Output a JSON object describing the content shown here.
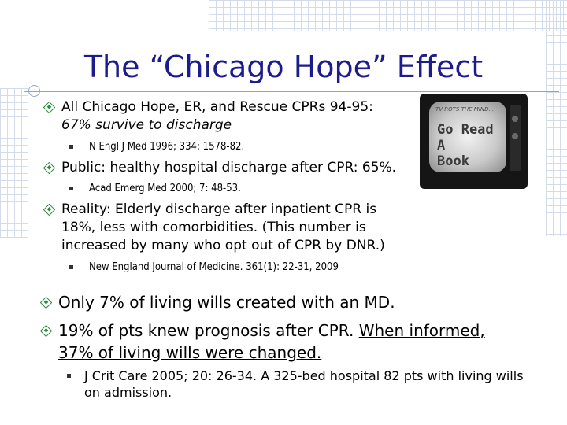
{
  "slide": {
    "title": "The “Chicago Hope” Effect",
    "bullets": [
      {
        "line1": "All Chicago Hope, ER, and Rescue CPRs 94-95:",
        "line2": "67% survive to discharge"
      },
      {
        "sub": "N Engl J Med 1996; 334: 1578-82."
      },
      {
        "text": "Public: healthy hospital discharge after CPR: 65%."
      },
      {
        "sub": "Acad Emerg Med 2000; 7: 48-53."
      },
      {
        "line1": "Reality: Elderly discharge after inpatient CPR is",
        "line2": "18%, less with comorbidities. (This number is",
        "line3": "increased by many who opt out of CPR by DNR.)"
      },
      {
        "sub": "New England Journal of Medicine. 361(1): 22-31, 2009"
      },
      {
        "text": "Only 7% of living wills created with an MD."
      },
      {
        "part1": "19% of pts knew prognosis after CPR. ",
        "part2": "When informed,",
        "line2": "37% of living wills were changed."
      },
      {
        "line1": "J Crit Care 2005; 20: 26-34. A 325-bed hospital 82 pts with living wills",
        "line2": "on admission."
      }
    ]
  },
  "tv_image": {
    "top_text": "TV ROTS THE MIND...",
    "big_text_line1": "Go Read A",
    "big_text_line2": "Book"
  },
  "colors": {
    "title": "#1c1c8c",
    "bullet_diamond": "#2a8a3a",
    "grid": "#d4dcec",
    "rule": "#8fa4c8"
  },
  "icons": {
    "bullet_main": "diamond-bullet-icon",
    "bullet_sub": "square-bullet-icon"
  }
}
